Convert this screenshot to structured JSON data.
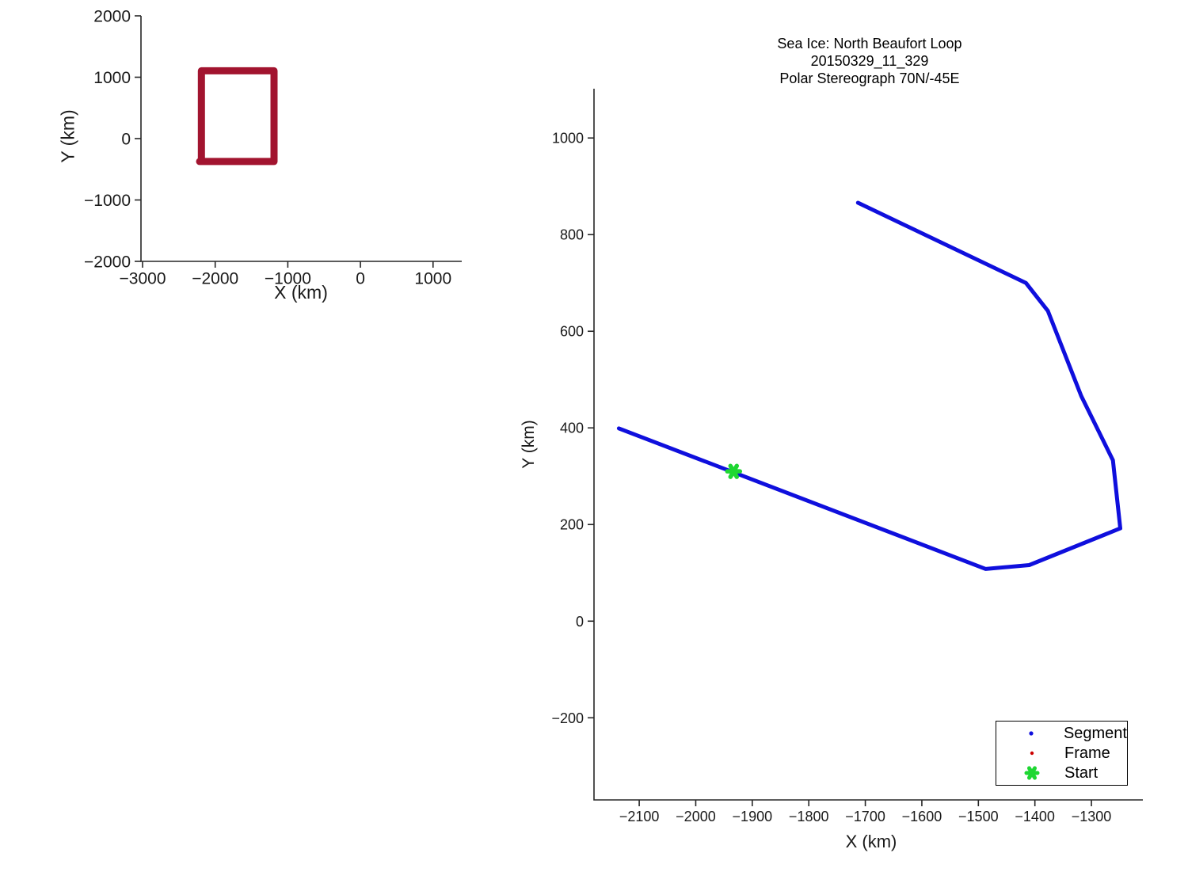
{
  "figure": {
    "background": "#ffffff",
    "axis_color": "#262626",
    "tick_text_color": "#1a1a1a"
  },
  "chart_data": [
    {
      "type": "line",
      "role": "locator-overview",
      "title": "",
      "xlabel": "X (km)",
      "ylabel": "Y (km)",
      "xlim": [
        -3022,
        1395
      ],
      "ylim": [
        -2000,
        2000
      ],
      "grid": false,
      "xticks": [
        {
          "v": -3000,
          "label": "−3000"
        },
        {
          "v": -2000,
          "label": "−2000"
        },
        {
          "v": -1000,
          "label": "−1000"
        },
        {
          "v": 0,
          "label": "0"
        },
        {
          "v": 1000,
          "label": "1000"
        }
      ],
      "yticks": [
        {
          "v": 2000,
          "label": "2000"
        },
        {
          "v": 1000,
          "label": "1000"
        },
        {
          "v": 0,
          "label": "0"
        },
        {
          "v": -1000,
          "label": "−1000"
        },
        {
          "v": -2000,
          "label": "−2000"
        }
      ],
      "tick_font_px": 21,
      "series": [
        {
          "name": "coverage-extent-box",
          "color": "#A2142F",
          "width": 9,
          "points": [
            [
              -2190,
              -373
            ],
            [
              -2190,
              1104
            ],
            [
              -1190,
              1104
            ],
            [
              -1190,
              -373
            ],
            [
              -2215,
              -373
            ]
          ]
        }
      ],
      "markers": []
    },
    {
      "type": "line",
      "role": "trajectory-plot",
      "title_lines": [
        "Sea Ice: North Beaufort Loop",
        "20150329_11_329",
        "Polar Stereograph 70N/-45E"
      ],
      "xlabel": "X (km)",
      "ylabel": "Y (km)",
      "xlim": [
        -2180,
        -1209
      ],
      "ylim": [
        -370,
        1102
      ],
      "grid": false,
      "xticks": [
        {
          "v": -2100,
          "label": "−2100"
        },
        {
          "v": -2000,
          "label": "−2000"
        },
        {
          "v": -1900,
          "label": "−1900"
        },
        {
          "v": -1800,
          "label": "−1800"
        },
        {
          "v": -1700,
          "label": "−1700"
        },
        {
          "v": -1600,
          "label": "−1600"
        },
        {
          "v": -1500,
          "label": "−1500"
        },
        {
          "v": -1400,
          "label": "−1400"
        },
        {
          "v": -1300,
          "label": "−1300"
        }
      ],
      "yticks": [
        {
          "v": 1000,
          "label": "1000"
        },
        {
          "v": 800,
          "label": "800"
        },
        {
          "v": 600,
          "label": "600"
        },
        {
          "v": 400,
          "label": "400"
        },
        {
          "v": 200,
          "label": "200"
        },
        {
          "v": 0,
          "label": "0"
        },
        {
          "v": -200,
          "label": "−200"
        }
      ],
      "tick_font_px": 18,
      "series": [
        {
          "name": "segment-track",
          "color": "#0F0FDD",
          "width": 5,
          "points": [
            [
              -1713,
              866
            ],
            [
              -1416,
              700
            ],
            [
              -1377,
              642
            ],
            [
              -1318,
              466
            ],
            [
              -1262,
              333
            ],
            [
              -1249,
              192
            ],
            [
              -1410,
              116
            ],
            [
              -1487,
              108
            ],
            [
              -2136,
              399
            ]
          ]
        }
      ],
      "markers": [
        {
          "name": "start-marker",
          "shape": "asterisk",
          "color": "#1ED732",
          "arm_radius": 8,
          "stroke_width": 5.5,
          "point": [
            -1933,
            310
          ]
        }
      ],
      "legend": {
        "position": "bottom-right",
        "entries": [
          {
            "label": "Segment",
            "marker": "dot",
            "color": "#0F0FDD",
            "radius": 2.6
          },
          {
            "label": "Frame",
            "marker": "dot",
            "color": "#CC0000",
            "radius": 2.2
          },
          {
            "label": "Start",
            "marker": "asterisk",
            "color": "#1ED732",
            "arm_radius": 7,
            "stroke_width": 5
          }
        ]
      }
    }
  ]
}
